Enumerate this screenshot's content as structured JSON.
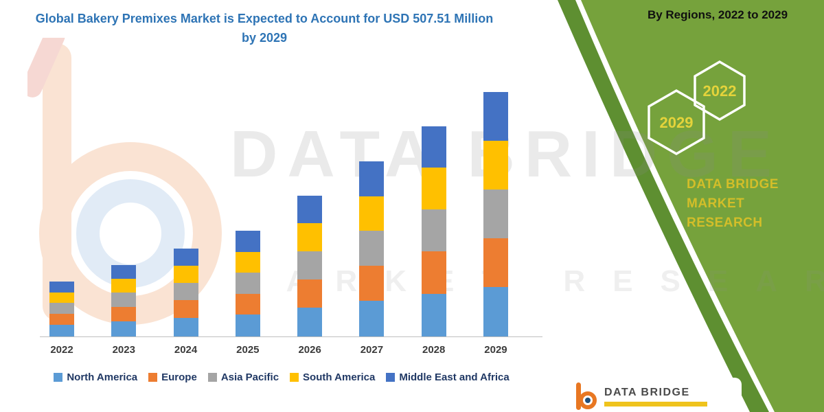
{
  "title": "Global Bakery Premixes Market is Expected to Account for USD 507.51 Million by 2029",
  "right_panel": {
    "heading": "By Regions, 2022 to 2029",
    "hex_left_year": "2029",
    "hex_right_year": "2022",
    "brand_line1": "DATA BRIDGE MARKET",
    "brand_line2": "RESEARCH",
    "panel_color": "#76A23C",
    "panel_dark_color": "#5E8F31",
    "accent_text_color": "#D3BE29"
  },
  "watermark": {
    "line1": "DATA BRIDGE",
    "line2": "MARKET RESEARCH"
  },
  "footer_logo": {
    "brand": "DATA BRIDGE"
  },
  "chart_data": {
    "type": "bar",
    "stacked": true,
    "title": "Global Bakery Premixes Market is Expected to Account for USD 507.51 Million by 2029",
    "unit": "USD Million",
    "xlabel": "",
    "ylabel": "",
    "grid": false,
    "legend_position": "bottom",
    "ylim": [
      0,
      520
    ],
    "categories": [
      "2022",
      "2023",
      "2024",
      "2025",
      "2026",
      "2027",
      "2028",
      "2029"
    ],
    "series": [
      {
        "name": "North America",
        "color": "#5B9BD5",
        "values": [
          24,
          31,
          38,
          45,
          60,
          74,
          89,
          103
        ]
      },
      {
        "name": "Europe",
        "color": "#ED7D31",
        "values": [
          23,
          30,
          37,
          44,
          59,
          73,
          88,
          101
        ]
      },
      {
        "name": "Asia Pacific",
        "color": "#A5A5A5",
        "values": [
          23,
          30,
          36,
          44,
          58,
          72,
          87,
          101
        ]
      },
      {
        "name": "South America",
        "color": "#FFC000",
        "values": [
          22,
          29,
          36,
          43,
          58,
          72,
          87,
          102
        ]
      },
      {
        "name": "Middle East and Africa",
        "color": "#4472C4",
        "values": [
          22,
          29,
          36,
          43,
          58,
          72,
          86,
          100.51
        ]
      }
    ],
    "totals_estimated": [
      114,
      149,
      183,
      219,
      293,
      363,
      437,
      507.51
    ]
  }
}
